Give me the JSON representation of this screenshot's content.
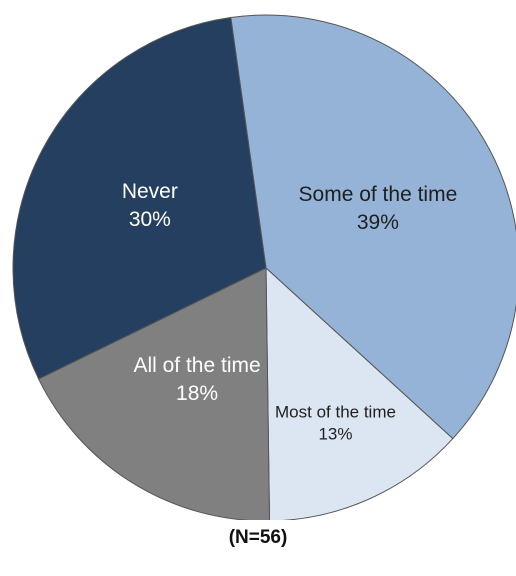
{
  "chart_data": {
    "type": "pie",
    "start_angle_deg": -8,
    "direction": "clockwise",
    "slices": [
      {
        "label": "Some of the time",
        "value": 39,
        "value_label": "39%",
        "color": "#95B3D7",
        "text_color": "#1f1f1f"
      },
      {
        "label": "Most of the time",
        "value": 13,
        "value_label": "13%",
        "color": "#DCE6F2",
        "text_color": "#1f1f1f"
      },
      {
        "label": "All of the time",
        "value": 18,
        "value_label": "18%",
        "color": "#808080",
        "text_color": "#ffffff"
      },
      {
        "label": "Never",
        "value": 30,
        "value_label": "30%",
        "color": "#243F60",
        "text_color": "#ffffff"
      }
    ],
    "note": "(N=56)"
  }
}
